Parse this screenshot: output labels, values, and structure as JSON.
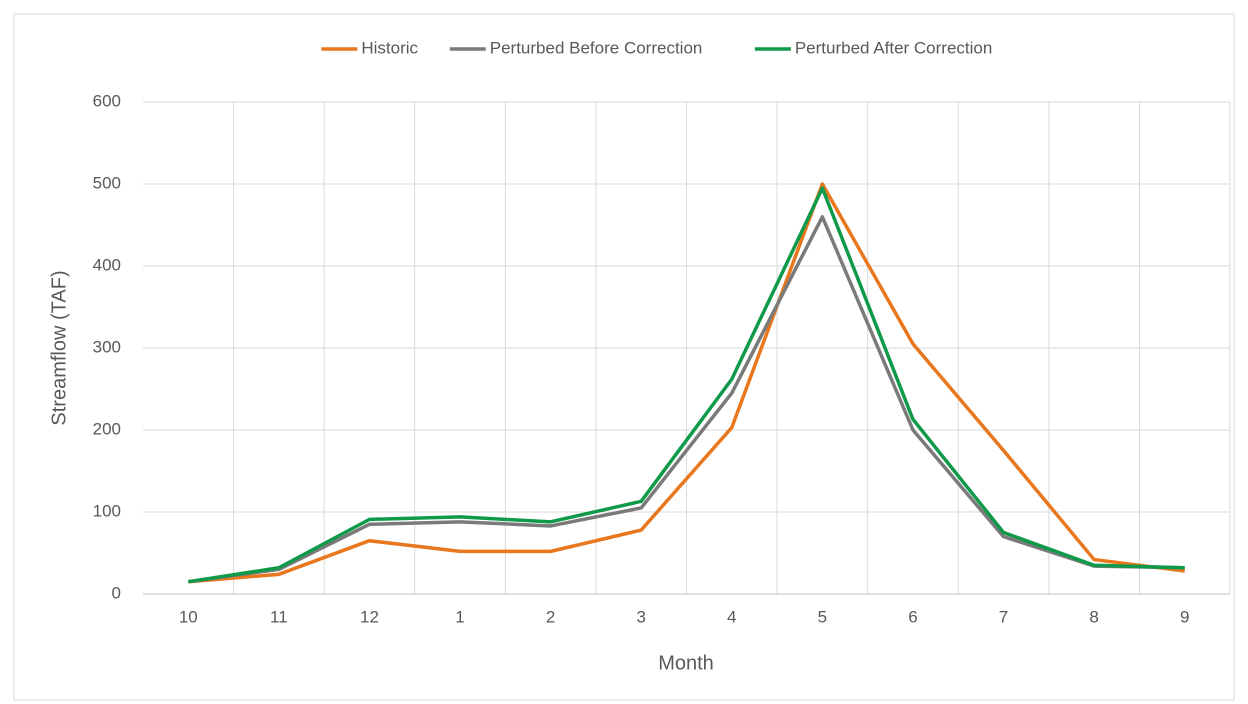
{
  "chart_data": {
    "type": "line",
    "x_label": "Month",
    "y_label": "Streamflow (TAF)",
    "categories": [
      "10",
      "11",
      "12",
      "1",
      "2",
      "3",
      "4",
      "5",
      "6",
      "7",
      "8",
      "9"
    ],
    "series": [
      {
        "name": "Historic",
        "color": "#e8771d",
        "values": [
          15,
          24,
          65,
          52,
          52,
          78,
          203,
          500,
          305,
          175,
          42,
          28
        ]
      },
      {
        "name": "Perturbed Before Correction",
        "color": "#7a7a7a",
        "values": [
          15,
          30,
          85,
          88,
          83,
          105,
          245,
          460,
          200,
          70,
          34,
          32
        ]
      },
      {
        "name": "Perturbed After Correction",
        "color": "#0f9a4a",
        "values": [
          15,
          32,
          91,
          94,
          88,
          113,
          262,
          495,
          213,
          75,
          35,
          32
        ]
      }
    ],
    "ylim": [
      0,
      600
    ],
    "yticks": [
      0,
      100,
      200,
      300,
      400,
      500,
      600
    ],
    "grid": true,
    "legend": "top"
  }
}
